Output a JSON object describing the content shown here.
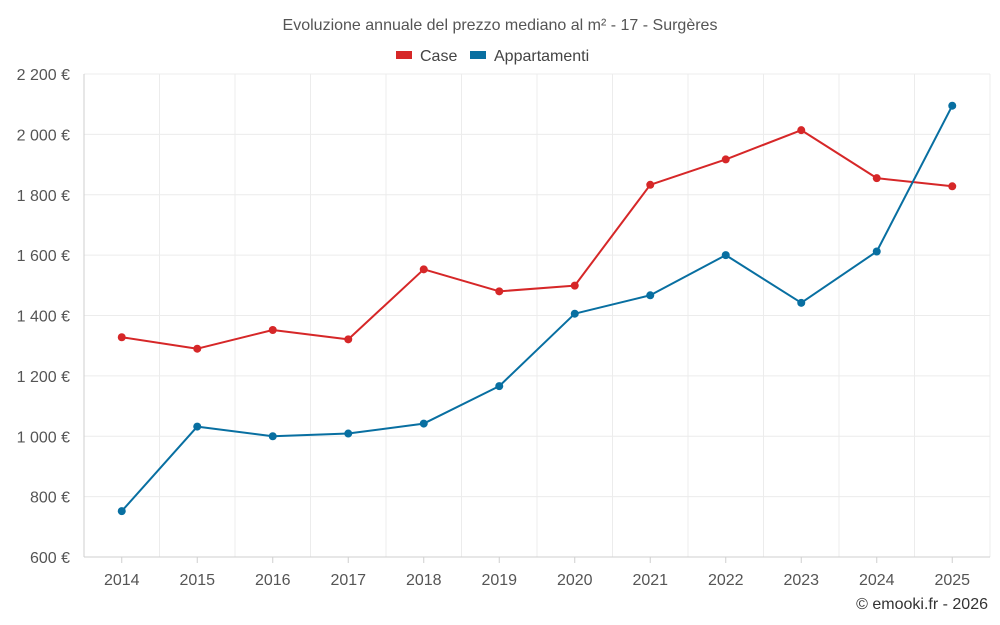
{
  "chart_data": {
    "type": "line",
    "title": "Evoluzione annuale del prezzo mediano al m² - 17 - Surgères",
    "xlabel": "",
    "ylabel": "",
    "categories": [
      "2014",
      "2015",
      "2016",
      "2017",
      "2018",
      "2019",
      "2020",
      "2021",
      "2022",
      "2023",
      "2024",
      "2025"
    ],
    "series": [
      {
        "name": "Case",
        "color": "#d62728",
        "values": [
          1328,
          1290,
          1352,
          1321,
          1553,
          1480,
          1499,
          1833,
          1917,
          2014,
          1855,
          1828
        ]
      },
      {
        "name": "Appartamenti",
        "color": "#086fa1",
        "values": [
          752,
          1032,
          1000,
          1009,
          1042,
          1166,
          1406,
          1467,
          1600,
          1442,
          1612,
          2095
        ]
      }
    ],
    "ylim": [
      600,
      2200
    ],
    "yticks": [
      600,
      800,
      1000,
      1200,
      1400,
      1600,
      1800,
      2000,
      2200
    ],
    "ytick_labels": [
      "600 €",
      "800 €",
      "1 000 €",
      "1 200 €",
      "1 400 €",
      "1 600 €",
      "1 800 €",
      "2 000 €",
      "2 200 €"
    ],
    "grid": true,
    "legend_position": "top-center"
  },
  "credit": "© emooki.fr - 2026"
}
